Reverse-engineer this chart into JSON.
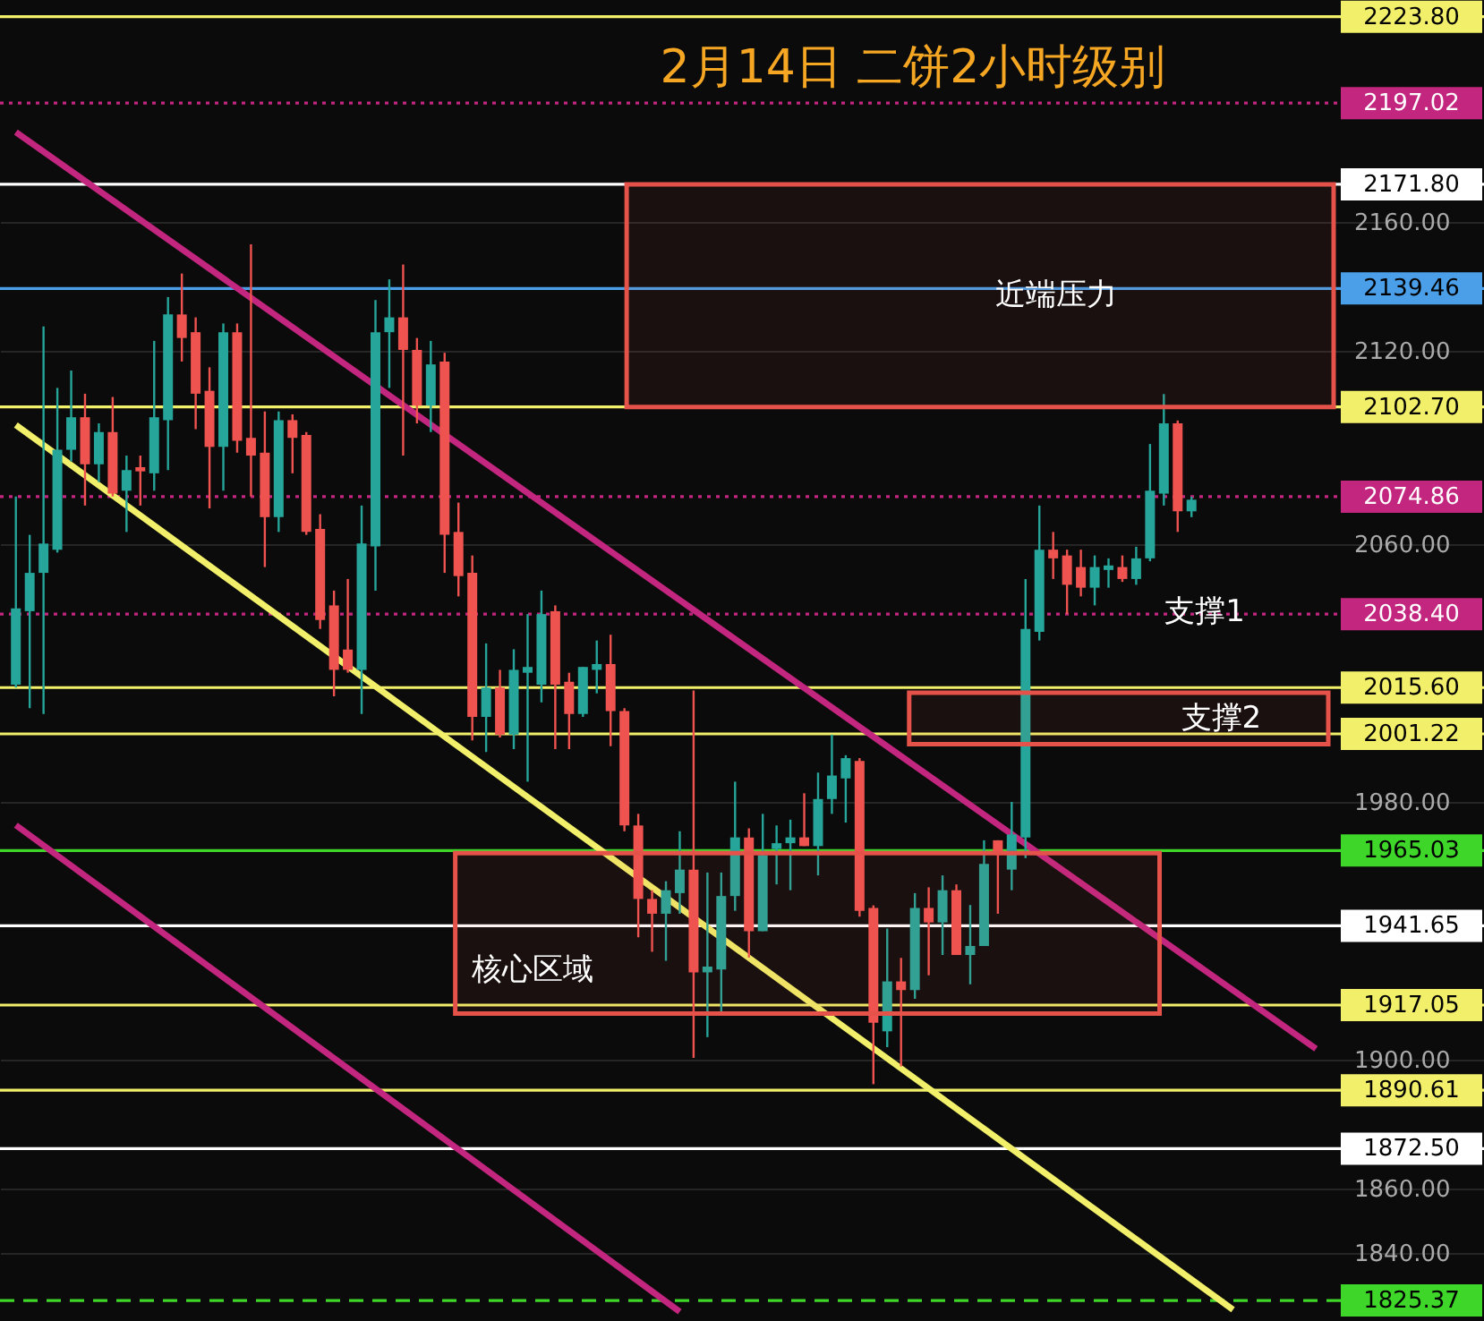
{
  "chart_data": {
    "type": "candlestick",
    "title": "2月14日  二饼2小时级别",
    "categories": [
      null,
      null,
      null,
      null,
      null,
      null,
      null,
      null,
      null,
      null,
      null,
      null,
      null,
      null,
      null,
      null,
      null,
      null,
      null,
      null,
      null,
      null,
      null,
      null,
      null,
      null,
      null,
      null,
      null,
      null,
      null,
      null,
      null,
      null,
      null,
      null,
      null,
      null,
      null,
      null,
      null,
      null,
      null,
      null,
      null,
      null,
      null,
      null,
      null,
      null,
      null,
      null,
      null,
      null,
      null,
      null,
      null,
      null,
      null,
      null,
      null,
      null,
      null,
      null,
      null,
      null,
      null,
      null,
      null,
      null,
      null,
      null,
      null,
      null,
      null,
      null,
      null,
      null,
      null,
      null,
      null,
      null,
      null,
      null,
      null,
      null,
      null,
      null,
      null,
      null,
      null,
      null,
      null,
      null,
      null,
      null,
      null,
      null,
      null,
      null,
      null,
      null,
      null,
      null,
      null,
      null
    ],
    "ohlc": [
      [
        2016.5,
        2074.9,
        2015.6,
        2040.2
      ],
      [
        2039.3,
        2063.0,
        2009.2,
        2051.2
      ],
      [
        2051.2,
        2127.7,
        2007.4,
        2060.3
      ],
      [
        2058.4,
        2108.6,
        2057.5,
        2089.4
      ],
      [
        2089.4,
        2114.0,
        2085.8,
        2099.5
      ],
      [
        2099.5,
        2106.8,
        2072.1,
        2084.9
      ],
      [
        2084.9,
        2097.6,
        2079.4,
        2094.9
      ],
      [
        2094.9,
        2105.8,
        2074.9,
        2075.8
      ],
      [
        2076.7,
        2087.6,
        2063.9,
        2083.1
      ],
      [
        2084.0,
        2087.6,
        2072.1,
        2082.7
      ],
      [
        2082.1,
        2123.2,
        2076.7,
        2099.5
      ],
      [
        2098.6,
        2136.8,
        2083.1,
        2131.4
      ],
      [
        2131.4,
        2144.1,
        2116.8,
        2124.1
      ],
      [
        2125.9,
        2130.5,
        2095.8,
        2106.8
      ],
      [
        2107.7,
        2115.0,
        2071.2,
        2090.3
      ],
      [
        2090.3,
        2128.6,
        2076.7,
        2125.9
      ],
      [
        2125.9,
        2128.6,
        2088.5,
        2092.2
      ],
      [
        2093.1,
        2153.2,
        2074.9,
        2087.6
      ],
      [
        2088.5,
        2101.3,
        2053.0,
        2068.5
      ],
      [
        2068.5,
        2101.3,
        2063.9,
        2098.6
      ],
      [
        2098.6,
        2100.4,
        2082.1,
        2093.1
      ],
      [
        2094.0,
        2094.9,
        2063.0,
        2063.9
      ],
      [
        2064.8,
        2069.4,
        2033.8,
        2036.6
      ],
      [
        2041.1,
        2045.7,
        2012.9,
        2021.1
      ],
      [
        2027.4,
        2049.3,
        2020.2,
        2021.1
      ],
      [
        2021.1,
        2072.1,
        2007.4,
        2060.3
      ],
      [
        2059.4,
        2135.9,
        2045.7,
        2125.9
      ],
      [
        2125.9,
        2142.3,
        2108.6,
        2130.5
      ],
      [
        2130.5,
        2146.9,
        2087.6,
        2120.4
      ],
      [
        2120.4,
        2124.1,
        2097.6,
        2103.1
      ],
      [
        2103.1,
        2123.2,
        2094.9,
        2115.9
      ],
      [
        2116.8,
        2119.5,
        2051.2,
        2063.0
      ],
      [
        2063.9,
        2073.0,
        2043.9,
        2050.2
      ],
      [
        2051.2,
        2056.6,
        1999.2,
        2006.5
      ],
      [
        2006.5,
        2029.3,
        1995.6,
        2015.6
      ],
      [
        2015.6,
        2021.1,
        2000.1,
        2001.0
      ],
      [
        2001.0,
        2027.5,
        1996.5,
        2021.1
      ],
      [
        2020.2,
        2038.4,
        1986.4,
        2022.0
      ],
      [
        2016.5,
        2045.7,
        2011.0,
        2038.4
      ],
      [
        2039.3,
        2041.1,
        1996.5,
        2016.5
      ],
      [
        2017.4,
        2020.2,
        1996.5,
        2007.4
      ],
      [
        2007.4,
        2022.0,
        2006.5,
        2022.0
      ],
      [
        2021.1,
        2030.2,
        2013.8,
        2022.9
      ],
      [
        2022.9,
        2032.0,
        1997.4,
        2008.3
      ],
      [
        2008.3,
        2009.2,
        1971.0,
        1972.8
      ],
      [
        1972.8,
        1976.4,
        1938.1,
        1950.0
      ],
      [
        1950.0,
        1952.7,
        1933.6,
        1945.4
      ],
      [
        1945.4,
        1955.5,
        1930.8,
        1952.7
      ],
      [
        1951.8,
        1971.0,
        1945.4,
        1959.1
      ],
      [
        1959.1,
        2014.7,
        1900.7,
        1927.2
      ],
      [
        1927.2,
        1958.2,
        1907.1,
        1929.0
      ],
      [
        1928.1,
        1958.2,
        1914.4,
        1950.9
      ],
      [
        1950.9,
        1986.4,
        1946.3,
        1969.1
      ],
      [
        1969.1,
        1971.9,
        1931.8,
        1940.0
      ],
      [
        1940.0,
        1976.4,
        1940.0,
        1963.6
      ],
      [
        1965.5,
        1972.8,
        1954.5,
        1967.3
      ],
      [
        1967.3,
        1974.6,
        1952.7,
        1969.1
      ],
      [
        1969.1,
        1982.8,
        1966.4,
        1966.4
      ],
      [
        1966.4,
        1989.2,
        1957.3,
        1981.0
      ],
      [
        1981.0,
        2001.0,
        1976.4,
        1988.3
      ],
      [
        1987.4,
        1994.6,
        1973.7,
        1993.7
      ],
      [
        1992.8,
        1993.7,
        1944.5,
        1946.3
      ],
      [
        1947.2,
        1948.0,
        1892.5,
        1911.6
      ],
      [
        1908.9,
        1940.8,
        1904.0,
        1924.4
      ],
      [
        1924.4,
        1931.7,
        1898.0,
        1921.7
      ],
      [
        1921.7,
        1951.8,
        1919.0,
        1947.2
      ],
      [
        1947.2,
        1953.6,
        1926.3,
        1942.7
      ],
      [
        1942.7,
        1957.3,
        1932.6,
        1952.7
      ],
      [
        1952.7,
        1954.5,
        1932.6,
        1932.6
      ],
      [
        1932.6,
        1948.1,
        1923.5,
        1935.4
      ],
      [
        1935.4,
        1968.2,
        1935.4,
        1960.9
      ],
      [
        1968.2,
        1968.2,
        1945.4,
        1964.5
      ],
      [
        1959.1,
        1980.1,
        1952.7,
        1970.0
      ],
      [
        1969.1,
        2049.3,
        1962.7,
        2033.8
      ],
      [
        2032.9,
        2072.1,
        2030.2,
        2058.4
      ],
      [
        2058.4,
        2063.9,
        2049.3,
        2055.7
      ],
      [
        2056.6,
        2058.4,
        2038.4,
        2047.5
      ],
      [
        2053.0,
        2058.4,
        2043.9,
        2046.6
      ],
      [
        2046.6,
        2056.6,
        2041.1,
        2053.0
      ],
      [
        2052.1,
        2055.7,
        2046.6,
        2053.5
      ],
      [
        2053.0,
        2056.6,
        2048.4,
        2049.3
      ],
      [
        2049.3,
        2059.3,
        2047.5,
        2055.7
      ],
      [
        2055.7,
        2091.2,
        2054.8,
        2076.7
      ],
      [
        2075.8,
        2106.7,
        2072.1,
        2097.6
      ],
      [
        2097.6,
        2098.5,
        2063.9,
        2070.3
      ],
      [
        2070.3,
        2074.8,
        2068.5,
        2073.9
      ],
      null,
      null,
      null,
      null,
      null,
      null,
      null,
      null,
      null,
      null,
      null,
      null,
      null,
      null,
      null,
      null,
      null,
      null,
      null,
      null
    ],
    "colors": [
      "#26a69a",
      "#26a69a",
      "#26a69a",
      "#26a69a",
      "#26a69a",
      "#ef5350",
      "#26a69a",
      "#ef5350",
      "#26a69a",
      "#ef5350",
      "#26a69a",
      "#26a69a",
      "#ef5350",
      "#ef5350",
      "#ef5350",
      "#26a69a",
      "#ef5350",
      "#ef5350",
      "#ef5350",
      "#26a69a",
      "#ef5350",
      "#ef5350",
      "#ef5350",
      "#ef5350",
      "#ef5350",
      "#26a69a",
      "#26a69a",
      "#26a69a",
      "#ef5350",
      "#ef5350",
      "#26a69a",
      "#ef5350",
      "#ef5350",
      "#ef5350",
      "#26a69a",
      "#ef5350",
      "#26a69a",
      "#26a69a",
      "#26a69a",
      "#ef5350",
      "#ef5350",
      "#26a69a",
      "#26a69a",
      "#ef5350",
      "#ef5350",
      "#ef5350",
      "#ef5350",
      "#26a69a",
      "#26a69a",
      "#ef5350",
      "#26a69a",
      "#26a69a",
      "#26a69a",
      "#ef5350",
      "#26a69a",
      "#26a69a",
      "#26a69a",
      "#ef5350",
      "#26a69a",
      "#26a69a",
      "#26a69a",
      "#ef5350",
      "#ef5350",
      "#26a69a",
      "#ef5350",
      "#26a69a",
      "#ef5350",
      "#26a69a",
      "#ef5350",
      "#26a69a",
      "#26a69a",
      "#ef5350",
      "#26a69a",
      "#26a69a",
      "#26a69a",
      "#ef5350",
      "#ef5350",
      "#ef5350",
      "#26a69a",
      "#26a69a",
      "#ef5350",
      "#26a69a",
      "#26a69a",
      "#26a69a",
      "#ef5350",
      "#26a69a",
      null,
      null,
      null,
      null,
      null,
      null,
      null,
      null,
      null,
      null,
      null,
      null,
      null,
      null,
      null,
      null,
      null,
      null,
      null,
      null
    ],
    "ylim": [
      1819,
      2229
    ],
    "yticks": [
      {
        "value": 1840,
        "label": "1840.00"
      },
      {
        "value": 1860,
        "label": "1860.00"
      },
      {
        "value": 1900,
        "label": "1900.00"
      },
      {
        "value": 1980,
        "label": "1980.00"
      },
      {
        "value": 2060,
        "label": "2060.00"
      },
      {
        "value": 2120,
        "label": "2120.00"
      },
      {
        "value": 2160,
        "label": "2160.00"
      }
    ],
    "tick_labels": "y",
    "grid": "y",
    "series": [
      {
        "type": "line",
        "color": "#c2267f",
        "values": [
          2188.0,
          null,
          null,
          null,
          null,
          null,
          null,
          null,
          null,
          null,
          null,
          null,
          null,
          null,
          null,
          null,
          null,
          null,
          null,
          null,
          null,
          null,
          null,
          null,
          null,
          null,
          null,
          null,
          null,
          null,
          null,
          null,
          null,
          null,
          null,
          null,
          null,
          null,
          null,
          null,
          null,
          null,
          null,
          null,
          null,
          null,
          null,
          null,
          null,
          null,
          null,
          null,
          null,
          null,
          null,
          null,
          null,
          null,
          null,
          null,
          null,
          null,
          null,
          null,
          null,
          null,
          null,
          null,
          null,
          null,
          null,
          null,
          null,
          null,
          null,
          null,
          null,
          null,
          null,
          null,
          null,
          null,
          null,
          null,
          null,
          null,
          null,
          null,
          null,
          null,
          null,
          null,
          null,
          null,
          1903.5,
          null,
          null,
          null,
          null,
          null,
          null,
          null,
          null,
          null,
          null,
          null
        ]
      },
      {
        "type": "line",
        "color": "#c2267f",
        "values": [
          1972.9,
          null,
          null,
          null,
          null,
          null,
          null,
          null,
          null,
          null,
          null,
          null,
          null,
          null,
          null,
          null,
          null,
          null,
          null,
          null,
          null,
          null,
          null,
          null,
          null,
          null,
          null,
          null,
          null,
          null,
          null,
          null,
          null,
          null,
          null,
          null,
          null,
          null,
          null,
          null,
          null,
          null,
          null,
          null,
          null,
          null,
          null,
          null,
          1821.9,
          null,
          null,
          null,
          null,
          null,
          null,
          null,
          null,
          null,
          null,
          null,
          null,
          null,
          null,
          null,
          null,
          null,
          null,
          null,
          null,
          null,
          null,
          null,
          null,
          null,
          null,
          null,
          null,
          null,
          null,
          null,
          null,
          null,
          null,
          null,
          null,
          null,
          null,
          null,
          null,
          null,
          null,
          null,
          null,
          null,
          null,
          null,
          null,
          null,
          null,
          null,
          null,
          null,
          null,
          null,
          null,
          null
        ]
      },
      {
        "type": "line",
        "color": "#f2ef6a",
        "values": [
          2097.1,
          null,
          null,
          null,
          null,
          null,
          null,
          null,
          null,
          null,
          null,
          null,
          null,
          null,
          null,
          null,
          null,
          null,
          null,
          null,
          null,
          null,
          null,
          null,
          null,
          null,
          null,
          null,
          null,
          null,
          null,
          null,
          null,
          null,
          null,
          null,
          null,
          null,
          null,
          null,
          null,
          null,
          null,
          null,
          null,
          null,
          null,
          null,
          null,
          null,
          null,
          null,
          null,
          null,
          null,
          null,
          null,
          null,
          null,
          null,
          null,
          null,
          null,
          null,
          null,
          null,
          null,
          null,
          null,
          null,
          null,
          null,
          null,
          null,
          null,
          null,
          null,
          null,
          null,
          null,
          null,
          null,
          null,
          null,
          null,
          null,
          null,
          null,
          1822.5,
          null,
          null,
          null,
          null,
          null,
          null,
          null,
          null,
          null,
          null,
          null,
          null,
          null,
          null,
          null,
          null,
          null
        ]
      }
    ],
    "bands": [
      {
        "axis": "y",
        "from": 2102.7,
        "to": 2171.8,
        "label": "近端压力",
        "color": "#e5524a"
      },
      {
        "axis": "y",
        "from": 1998,
        "to": 2014,
        "label": "支撑2",
        "color": "#e5524a"
      },
      {
        "axis": "y",
        "from": 1914.4,
        "to": 1964.2,
        "label": "核心区域",
        "color": "#e5524a"
      }
    ],
    "ref_lines": [
      {
        "axis": "y",
        "value": 2223.8,
        "label": "2223.80",
        "color": "#f2ef6a"
      },
      {
        "axis": "y",
        "value": 2197.02,
        "label": "2197.02",
        "color": "#c2267f",
        "line_style": "dotted"
      },
      {
        "axis": "y",
        "value": 2171.8,
        "label": "2171.80",
        "color": "#ffffff"
      },
      {
        "axis": "y",
        "value": 2139.46,
        "label": "2139.46",
        "color": "#4a9fe8"
      },
      {
        "axis": "y",
        "value": 2102.7,
        "label": "2102.70",
        "color": "#f2ef6a"
      },
      {
        "axis": "y",
        "value": 2074.86,
        "label": "2074.86",
        "color": "#c2267f",
        "line_style": "dotted"
      },
      {
        "axis": "y",
        "value": 2038.4,
        "label": "2038.40",
        "color": "#c2267f",
        "line_style": "dotted"
      },
      {
        "axis": "y",
        "value": 2015.6,
        "label": "2015.60",
        "color": "#f2ef6a"
      },
      {
        "axis": "y",
        "value": 2001.22,
        "label": "2001.22",
        "color": "#f2ef6a"
      },
      {
        "axis": "y",
        "value": 1965.03,
        "label": "1965.03",
        "color": "#3fd62a"
      },
      {
        "axis": "y",
        "value": 1941.65,
        "label": "1941.65",
        "color": "#ffffff"
      },
      {
        "axis": "y",
        "value": 1917.05,
        "label": "1917.05",
        "color": "#f2ef6a"
      },
      {
        "axis": "y",
        "value": 1890.61,
        "label": "1890.61",
        "color": "#f2ef6a"
      },
      {
        "axis": "y",
        "value": 1872.5,
        "label": "1872.50",
        "color": "#ffffff"
      },
      {
        "axis": "y",
        "value": 1825.37,
        "label": "1825.37",
        "color": "#3fd62a",
        "line_style": "dashed"
      }
    ],
    "annotations": [
      "支撑1"
    ]
  }
}
